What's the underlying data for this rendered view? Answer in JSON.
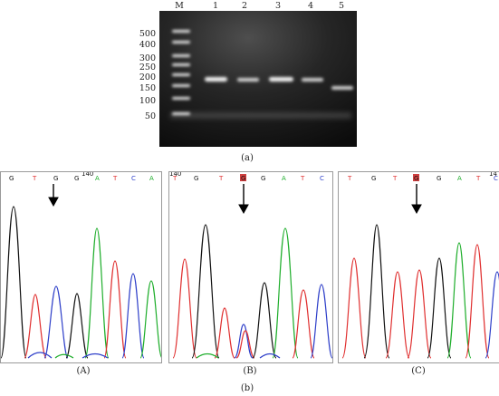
{
  "gel": {
    "lanes": [
      "M",
      "1",
      "2",
      "3",
      "4",
      "5"
    ],
    "ladder": [
      "500",
      "400",
      "300",
      "250",
      "200",
      "150",
      "100",
      "50"
    ],
    "caption": "(a)"
  },
  "chromatograms": [
    {
      "bases": [
        "G",
        "T",
        "G",
        "G",
        "A",
        "T",
        "C",
        "A"
      ],
      "position": "140",
      "caption": "(A)"
    },
    {
      "bases": [
        "T",
        "G",
        "T",
        "G",
        "G",
        "A",
        "T",
        "C"
      ],
      "position": "140",
      "caption": "(B)"
    },
    {
      "bases": [
        "T",
        "G",
        "T",
        "G",
        "G",
        "A",
        "T",
        "C"
      ],
      "position": "14",
      "caption": "(C)"
    }
  ],
  "caption_b": "(b)",
  "colors": {
    "A": "#1fae2c",
    "C": "#2e3fc9",
    "G": "#111111",
    "T": "#e03030",
    "mutation": "#d04040"
  }
}
